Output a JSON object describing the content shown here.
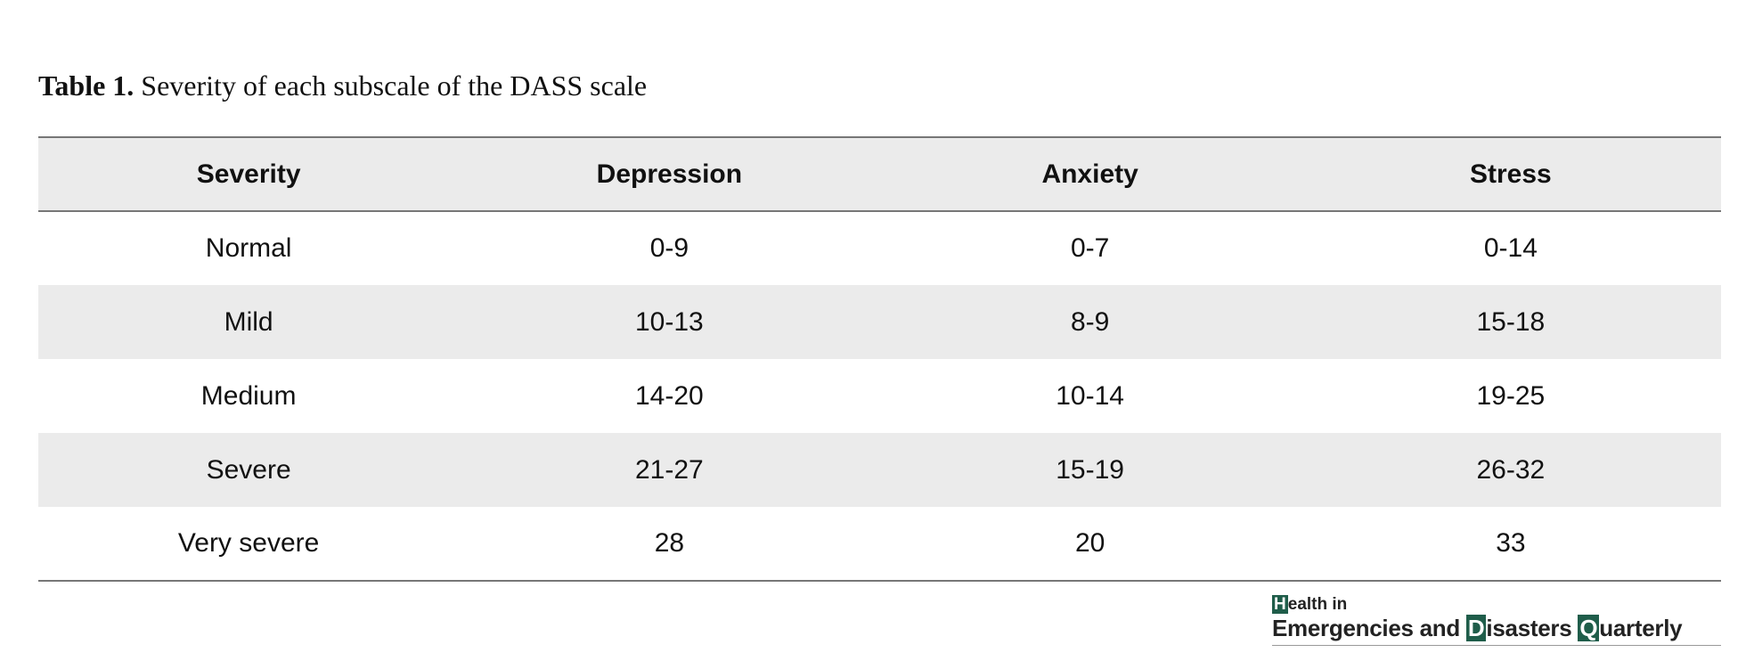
{
  "title": {
    "label": "Table 1.",
    "text": "Severity of each subscale of the DASS scale"
  },
  "table": {
    "header": [
      "Severity",
      "Depression",
      "Anxiety",
      "Stress"
    ],
    "rows": [
      [
        "Normal",
        "0-9",
        "0-7",
        "0-14"
      ],
      [
        "Mild",
        "10-13",
        "8-9",
        "15-18"
      ],
      [
        "Medium",
        "14-20",
        "10-14",
        "19-25"
      ],
      [
        "Severe",
        "21-27",
        "15-19",
        "26-32"
      ],
      [
        "Very severe",
        "28",
        "20",
        "33"
      ]
    ]
  },
  "logo": {
    "line1": "Health in",
    "line2": "Emergencies and Disasters Quarterly"
  }
}
